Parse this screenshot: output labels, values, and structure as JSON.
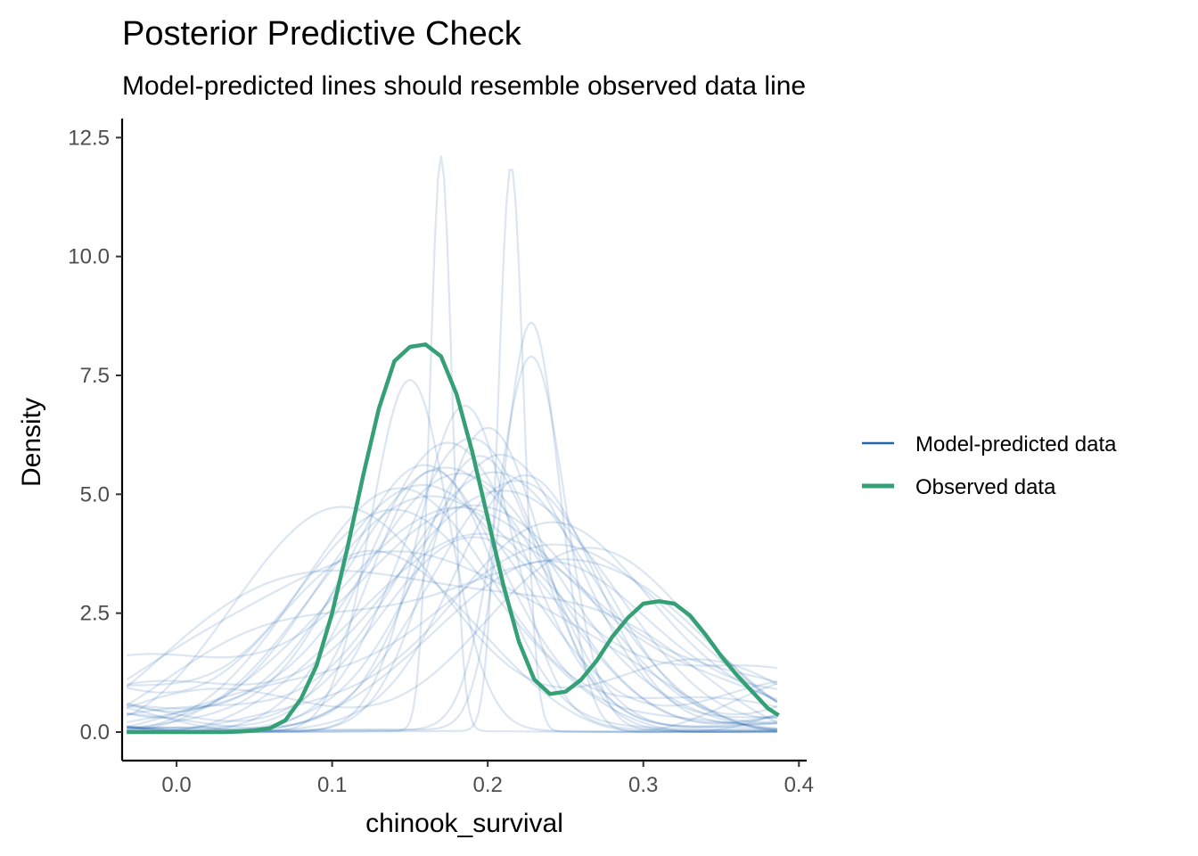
{
  "chart_data": {
    "type": "line",
    "title": "Posterior Predictive Check",
    "subtitle": "Model-predicted lines should resemble observed data line",
    "xlabel": "chinook_survival",
    "ylabel": "Density",
    "xlim": [
      -0.035,
      0.405
    ],
    "ylim": [
      -0.6,
      12.9
    ],
    "x_ticks": [
      "0.0",
      "0.1",
      "0.2",
      "0.3",
      "0.4"
    ],
    "x_tick_values": [
      0.0,
      0.1,
      0.2,
      0.3,
      0.4
    ],
    "y_ticks": [
      "0.0",
      "2.5",
      "5.0",
      "7.5",
      "10.0",
      "12.5"
    ],
    "y_tick_values": [
      0.0,
      2.5,
      5.0,
      7.5,
      10.0,
      12.5
    ],
    "grid": false,
    "legend_position": "right",
    "colors": {
      "predicted": "#2166ac",
      "observed": "#35a075"
    },
    "legend": [
      {
        "label": "Model-predicted data",
        "key": "predicted"
      },
      {
        "label": "Observed data",
        "key": "observed"
      }
    ],
    "series": [
      {
        "name": "Observed data",
        "x": [
          -0.032,
          -0.02,
          -0.01,
          0.0,
          0.01,
          0.02,
          0.03,
          0.04,
          0.05,
          0.06,
          0.07,
          0.08,
          0.09,
          0.1,
          0.11,
          0.12,
          0.13,
          0.14,
          0.15,
          0.16,
          0.17,
          0.18,
          0.19,
          0.2,
          0.21,
          0.22,
          0.23,
          0.24,
          0.25,
          0.26,
          0.27,
          0.28,
          0.29,
          0.3,
          0.31,
          0.32,
          0.33,
          0.34,
          0.35,
          0.36,
          0.37,
          0.38,
          0.387
        ],
        "y": [
          0.0,
          0.0,
          0.0,
          0.0,
          0.0,
          0.0,
          0.0,
          0.01,
          0.03,
          0.08,
          0.25,
          0.7,
          1.4,
          2.5,
          3.9,
          5.4,
          6.8,
          7.8,
          8.1,
          8.15,
          7.9,
          7.1,
          5.9,
          4.5,
          3.1,
          1.9,
          1.1,
          0.8,
          0.85,
          1.1,
          1.5,
          2.0,
          2.4,
          2.7,
          2.75,
          2.7,
          2.45,
          2.05,
          1.6,
          1.2,
          0.85,
          0.5,
          0.35
        ]
      },
      {
        "name": "Model-predicted data",
        "draws": [
          {
            "m": 0.17,
            "s": 0.007,
            "h": 12.1,
            "b": 0.02
          },
          {
            "m": 0.215,
            "s": 0.008,
            "h": 11.9,
            "b": 0.02
          },
          {
            "m": 0.228,
            "s": 0.018,
            "h": 8.6,
            "b": 0.05
          },
          {
            "m": 0.228,
            "s": 0.022,
            "h": 7.9,
            "b": 0.05
          },
          {
            "m": 0.15,
            "s": 0.025,
            "h": 7.4,
            "b": 0.02
          },
          {
            "m": 0.185,
            "s": 0.03,
            "h": 6.8,
            "b": 0.1
          },
          {
            "m": 0.2,
            "s": 0.035,
            "h": 6.3,
            "b": 0.1
          },
          {
            "m": 0.19,
            "s": 0.045,
            "h": 6.0,
            "b": 0.2
          },
          {
            "m": 0.21,
            "s": 0.05,
            "h": 5.7,
            "b": 0.3
          },
          {
            "m": 0.16,
            "s": 0.05,
            "h": 5.6,
            "b": 0.3
          },
          {
            "m": 0.18,
            "s": 0.06,
            "h": 5.4,
            "b": 0.4
          },
          {
            "m": 0.2,
            "s": 0.06,
            "h": 5.2,
            "b": 0.5
          },
          {
            "m": 0.17,
            "s": 0.065,
            "h": 5.0,
            "b": 0.6
          },
          {
            "m": 0.22,
            "s": 0.055,
            "h": 4.9,
            "b": 0.4
          },
          {
            "m": 0.15,
            "s": 0.06,
            "h": 4.7,
            "b": 0.7
          },
          {
            "m": 0.19,
            "s": 0.07,
            "h": 4.6,
            "b": 0.8
          },
          {
            "m": 0.24,
            "s": 0.06,
            "h": 4.4,
            "b": 0.5
          },
          {
            "m": 0.13,
            "s": 0.06,
            "h": 4.3,
            "b": 0.9
          },
          {
            "m": 0.2,
            "s": 0.075,
            "h": 4.2,
            "b": 1.0
          },
          {
            "m": 0.16,
            "s": 0.07,
            "h": 4.1,
            "b": 1.1
          },
          {
            "m": 0.18,
            "s": 0.08,
            "h": 4.0,
            "b": 1.2
          },
          {
            "m": 0.21,
            "s": 0.07,
            "h": 3.9,
            "b": 0.9
          },
          {
            "m": 0.14,
            "s": 0.07,
            "h": 3.8,
            "b": 1.3
          },
          {
            "m": 0.23,
            "s": 0.07,
            "h": 3.7,
            "b": 0.8
          },
          {
            "m": 0.17,
            "s": 0.085,
            "h": 3.6,
            "b": 1.4
          },
          {
            "m": 0.19,
            "s": 0.06,
            "h": 3.5,
            "b": 0.6
          },
          {
            "m": 0.12,
            "s": 0.07,
            "h": 3.4,
            "b": 1.5
          },
          {
            "m": 0.25,
            "s": 0.065,
            "h": 3.3,
            "b": 0.7
          },
          {
            "m": 0.15,
            "s": 0.08,
            "h": 3.2,
            "b": 1.6
          },
          {
            "m": 0.2,
            "s": 0.09,
            "h": 3.1,
            "b": 1.4
          },
          {
            "m": 0.11,
            "s": 0.06,
            "h": 3.0,
            "b": 1.2
          },
          {
            "m": 0.26,
            "s": 0.07,
            "h": 3.0,
            "b": 0.9
          },
          {
            "m": 0.175,
            "s": 0.05,
            "h": 5.9,
            "b": 0.2
          },
          {
            "m": 0.225,
            "s": 0.045,
            "h": 5.3,
            "b": 0.2
          },
          {
            "m": 0.195,
            "s": 0.04,
            "h": 5.8,
            "b": 0.1
          },
          {
            "m": 0.165,
            "s": 0.04,
            "h": 5.5,
            "b": 0.1
          }
        ]
      }
    ]
  }
}
